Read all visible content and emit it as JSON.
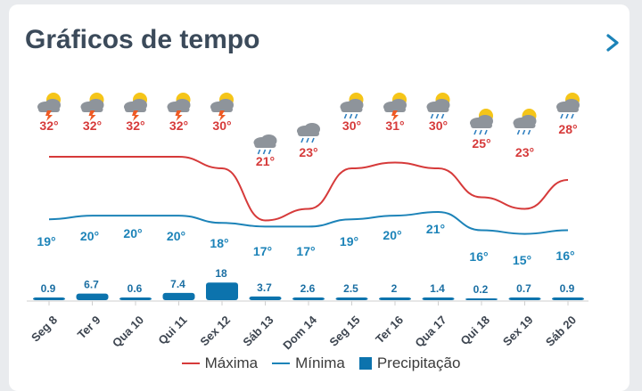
{
  "header": {
    "title": "Gráficos de tempo"
  },
  "colors": {
    "max": "#d63a3a",
    "min": "#1c83b8",
    "precip": "#0c73ad",
    "title": "#3b4a5a",
    "chevron": "#1c83b8"
  },
  "legend": {
    "max_label": "Máxima",
    "min_label": "Mínima",
    "precip_label": "Precipitação"
  },
  "chart_data": {
    "type": "line",
    "categories": [
      "Seg 8",
      "Ter 9",
      "Qua 10",
      "Qui 11",
      "Sex 12",
      "Sáb 13",
      "Dom 14",
      "Seg 15",
      "Ter 16",
      "Qua 17",
      "Qui 18",
      "Sex 19",
      "Sáb 20"
    ],
    "icons": [
      "sun-cloud-lightning-icon",
      "sun-cloud-lightning-icon",
      "sun-cloud-lightning-icon",
      "sun-cloud-lightning-icon",
      "sun-cloud-lightning-icon",
      "cloud-rain-icon",
      "cloud-rain-icon",
      "sun-cloud-rain-icon",
      "sun-cloud-lightning-icon",
      "sun-cloud-rain-icon",
      "sun-cloud-rain-icon",
      "sun-cloud-rain-icon",
      "sun-cloud-rain-icon"
    ],
    "series": [
      {
        "name": "Máxima",
        "values": [
          32,
          32,
          32,
          32,
          30,
          21,
          23,
          30,
          31,
          30,
          25,
          23,
          28
        ],
        "labels": [
          "32°",
          "32°",
          "32°",
          "32°",
          "30°",
          "21°",
          "23°",
          "30°",
          "31°",
          "30°",
          "25°",
          "23°",
          "28°"
        ]
      },
      {
        "name": "Mínima",
        "values": [
          19,
          20,
          20,
          20,
          18,
          17,
          17,
          19,
          20,
          21,
          16,
          15,
          16
        ],
        "labels": [
          "19°",
          "20°",
          "20°",
          "20°",
          "18°",
          "17°",
          "17°",
          "19°",
          "20°",
          "21°",
          "16°",
          "15°",
          "16°"
        ]
      },
      {
        "name": "Precipitação",
        "values": [
          0.9,
          6.7,
          0.6,
          7.4,
          18,
          3.7,
          2.6,
          2.5,
          2,
          1.4,
          0.2,
          0.7,
          0.9
        ],
        "labels": [
          "0.9",
          "6.7",
          "0.6",
          "7.4",
          "18",
          "3.7",
          "2.6",
          "2.5",
          "2",
          "1.4",
          "0.2",
          "0.7",
          "0.9"
        ]
      }
    ]
  }
}
